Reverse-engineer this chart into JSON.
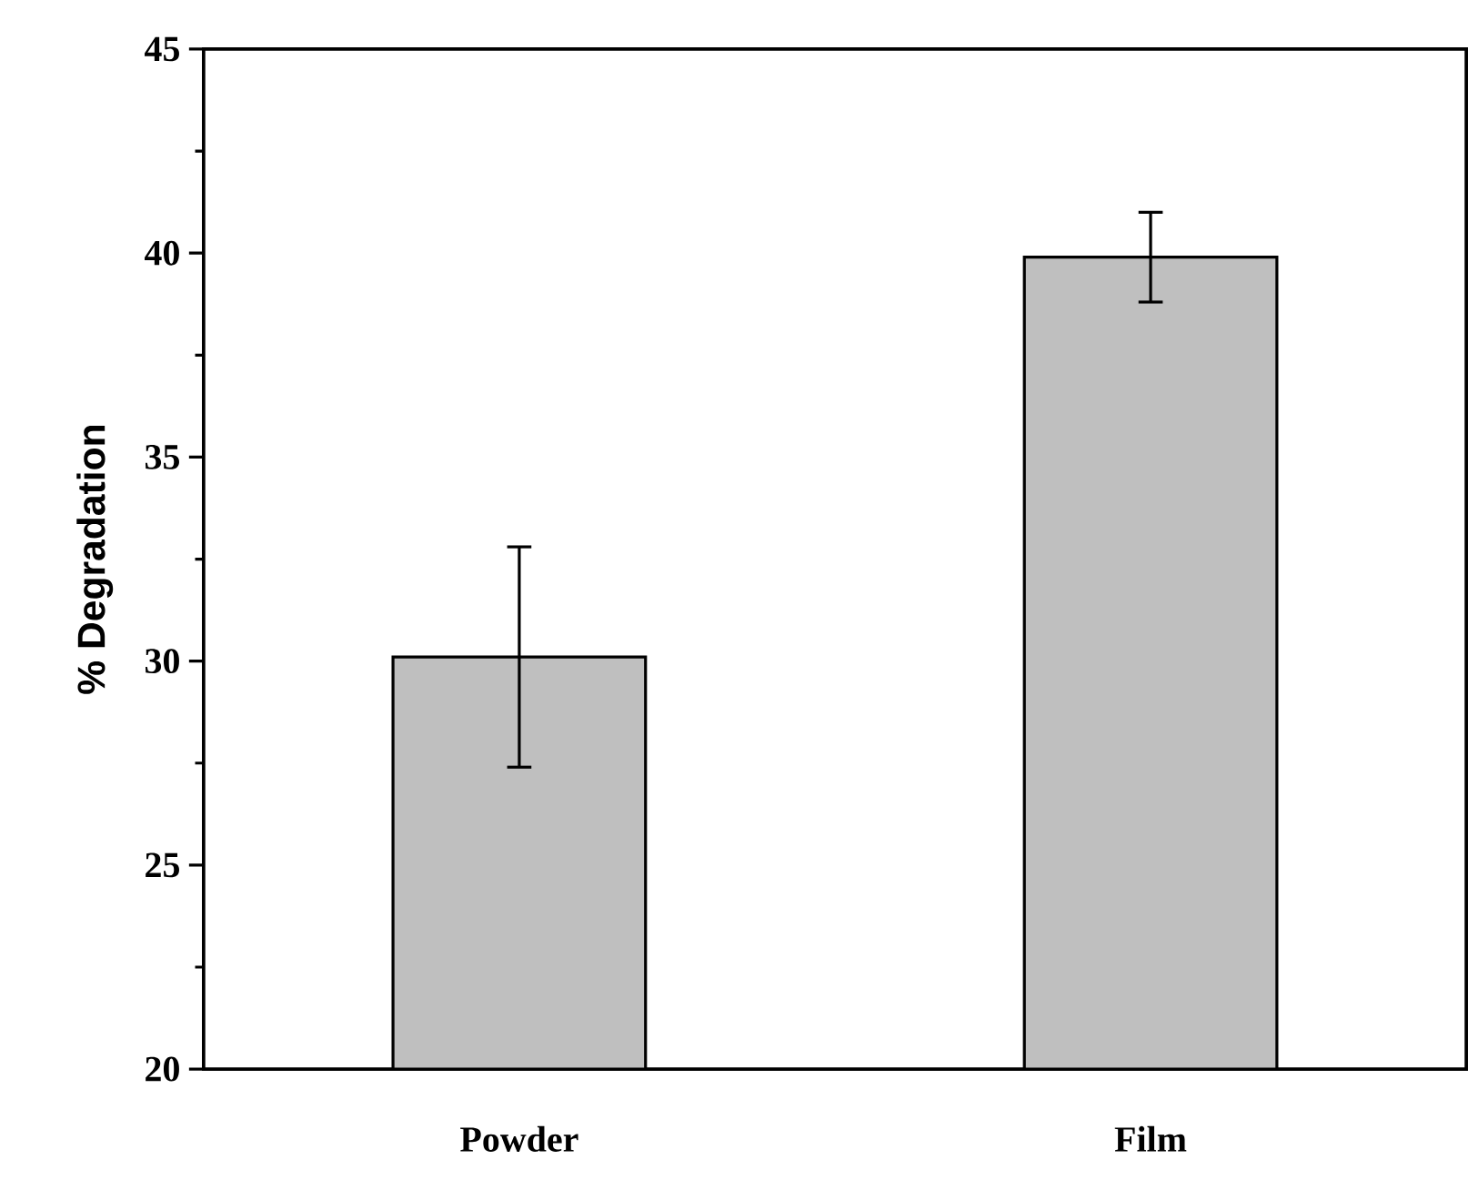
{
  "chart_data": {
    "type": "bar",
    "ylabel": "% Degradation",
    "categories": [
      "Powder",
      "Film"
    ],
    "values": [
      30.1,
      39.9
    ],
    "errors": [
      [
        27.4,
        32.8
      ],
      [
        38.8,
        41.0
      ]
    ],
    "color": "#bfbfbf",
    "ylim": [
      20,
      45
    ],
    "yticks": [
      20,
      25,
      30,
      35,
      40,
      45
    ]
  }
}
